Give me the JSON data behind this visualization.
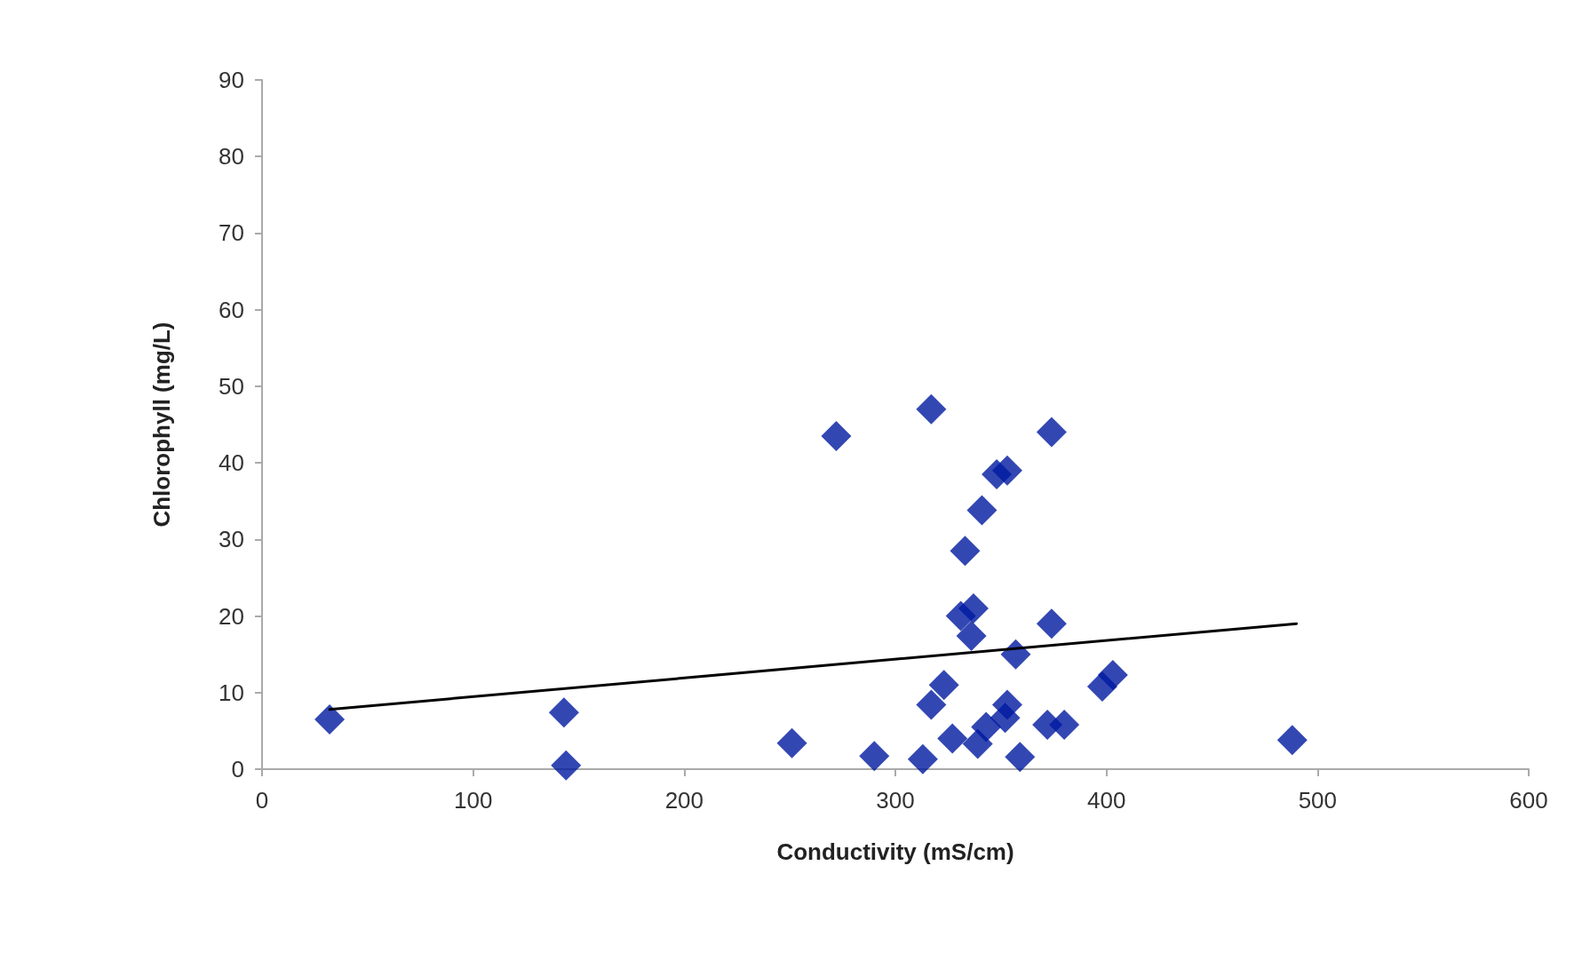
{
  "chart_data": {
    "type": "scatter",
    "xlabel": "Conductivity (mS/cm)",
    "ylabel": "Chlorophyll (mg/L)",
    "xlim": [
      0,
      600
    ],
    "xticks": [
      0,
      100,
      200,
      300,
      400,
      500,
      600
    ],
    "ylim": [
      0,
      90
    ],
    "yticks": [
      0,
      10,
      20,
      30,
      40,
      50,
      60,
      70,
      80,
      90
    ],
    "grid": false,
    "marker": "diamond",
    "series": [
      {
        "color": "#0019a0",
        "x": [
          32,
          143,
          144,
          251,
          272,
          290,
          313,
          317,
          374,
          348,
          353,
          341,
          333,
          331,
          337,
          336,
          374,
          357,
          323,
          317,
          327,
          339,
          343,
          353,
          352,
          372,
          380,
          359,
          398,
          403,
          488
        ],
        "values": [
          6.5,
          7.4,
          0.5,
          3.4,
          43.5,
          1.7,
          1.3,
          47,
          44,
          38.5,
          39,
          33.8,
          28.5,
          20,
          21,
          17.4,
          19,
          15,
          11,
          8.4,
          4,
          3.3,
          5.5,
          8.4,
          6.7,
          5.8,
          5.8,
          1.6,
          10.8,
          12.3,
          3.8
        ]
      },
      {
        "type": "line",
        "color": "#000000",
        "marker": "none",
        "line_style": "solid",
        "x": [
          32,
          490
        ],
        "values": [
          7.8,
          19
        ]
      }
    ]
  }
}
